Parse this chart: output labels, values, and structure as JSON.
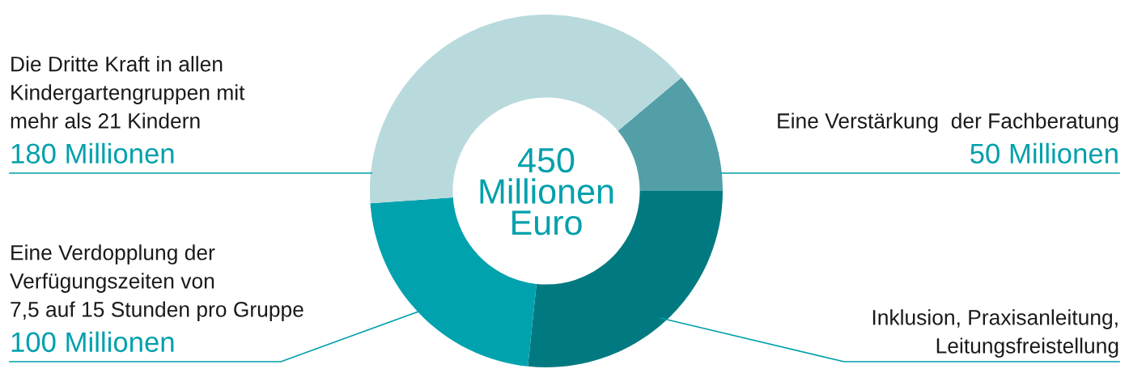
{
  "chart_data": {
    "type": "donut",
    "categories": [
      "Eine Verstärkung  der Fachberatung",
      "Inklusion, Praxisanleitung,\nLeitungsfreistellung",
      "Eine Verdopplung der\nVerfügungszeiten von\n7,5 auf 15 Stunden pro Gruppe",
      "Die Dritte Kraft in allen\nKindergartengruppen mit\nmehr als 21 Kindern"
    ],
    "values": [
      50,
      120,
      100,
      180
    ],
    "colors": [
      "#529fa8",
      "#007a80",
      "#00a2ae",
      "#b9dadc"
    ],
    "value_labels": [
      "50 Millionen",
      null,
      "100 Millionen",
      "180 Millionen"
    ],
    "annotations": [
      "450\nMillionen\nEuro"
    ]
  }
}
